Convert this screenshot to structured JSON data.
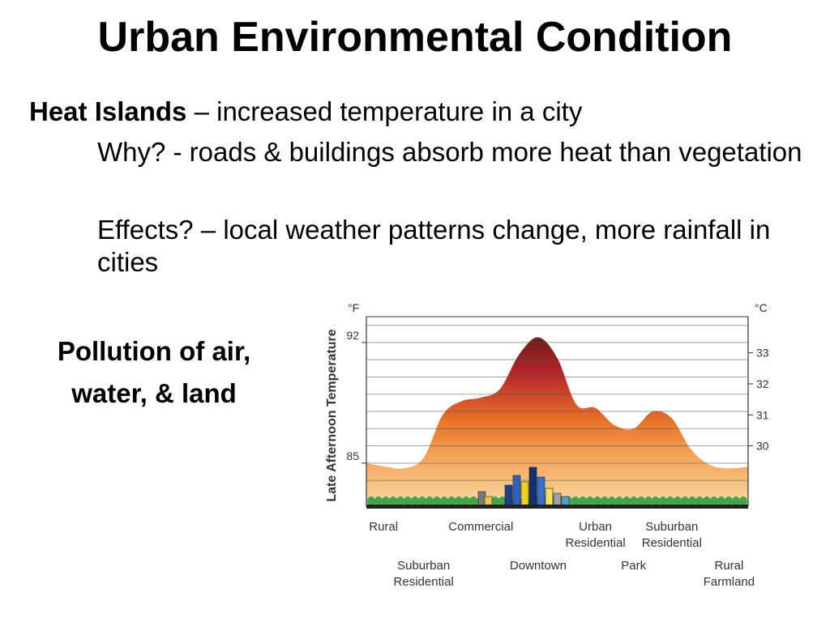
{
  "title": "Urban Environmental Condition",
  "heat_islands": {
    "term": "Heat Islands",
    "definition": " – increased temperature in a city",
    "why": "Why? - roads & buildings absorb more heat than vegetation",
    "effects": "Effects? – local weather patterns change, more rainfall in cities"
  },
  "pollution": {
    "line1": "Pollution of air,",
    "line2": "water, & land"
  },
  "chart_data": {
    "type": "area",
    "ylabel": "Late Afternoon Temperature",
    "y_unit_left": "°F",
    "y_unit_right": "°C",
    "y_ticks_left": [
      85,
      92
    ],
    "y_ticks_right": [
      30,
      31,
      32,
      33
    ],
    "ylim_f": [
      82.5,
      93.5
    ],
    "grid": true,
    "colors": {
      "peak": "#6b1c1c",
      "hot": "#b8262a",
      "warm": "#e8742a",
      "mild": "#f4a65a",
      "low": "#f7dba6",
      "trees": "#2fa040",
      "ground": "#222222"
    },
    "categories_row1": [
      {
        "label": [
          "Rural"
        ],
        "x": 0.0
      },
      {
        "label": [
          "Commercial"
        ],
        "x": 3.0
      },
      {
        "label": [
          "Urban",
          "Residential"
        ],
        "x": 6.0
      },
      {
        "label": [
          "Suburban",
          "Residential"
        ],
        "x": 8.0
      }
    ],
    "categories_row2": [
      {
        "label": [
          "Suburban",
          "Residential"
        ],
        "x": 1.5
      },
      {
        "label": [
          "Downtown"
        ],
        "x": 4.5
      },
      {
        "label": [
          "Park"
        ],
        "x": 7.0
      },
      {
        "label": [
          "Rural",
          "Farmland"
        ],
        "x": 9.5
      }
    ],
    "x": [
      0,
      0.5,
      1,
      1.5,
      2,
      2.5,
      3,
      3.5,
      4,
      4.5,
      5,
      5.5,
      6,
      6.5,
      7,
      7.5,
      8,
      8.5,
      9,
      9.5,
      10
    ],
    "values_f": [
      85.0,
      84.8,
      84.7,
      85.3,
      87.8,
      88.6,
      88.8,
      89.3,
      91.3,
      92.3,
      91.1,
      88.4,
      88.2,
      87.2,
      87.0,
      88.0,
      87.6,
      85.8,
      84.9,
      84.7,
      84.8
    ]
  }
}
